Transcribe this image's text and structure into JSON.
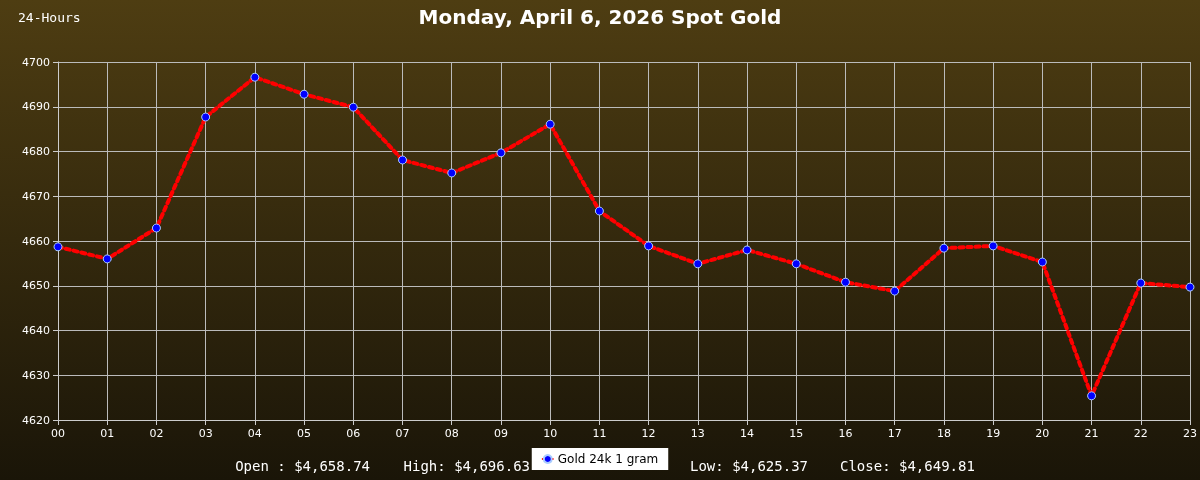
{
  "chart_data": {
    "type": "line",
    "title": "Monday, April 6, 2026 Spot Gold",
    "subtitle": "24-Hours",
    "categories": [
      "00",
      "01",
      "02",
      "03",
      "04",
      "05",
      "06",
      "07",
      "08",
      "09",
      "10",
      "11",
      "12",
      "13",
      "14",
      "15",
      "16",
      "17",
      "18",
      "19",
      "20",
      "21",
      "22",
      "23"
    ],
    "series": [
      {
        "name": "Gold 24k 1 gram",
        "color": "#ff0000",
        "values": [
          4658.7,
          4656.0,
          4662.9,
          4687.7,
          4696.6,
          4692.8,
          4689.9,
          4678.1,
          4675.2,
          4679.7,
          4686.1,
          4666.7,
          4658.9,
          4654.9,
          4658.0,
          4654.9,
          4650.8,
          4648.8,
          4658.4,
          4658.9,
          4655.3,
          4625.4,
          4650.6,
          4649.7
        ]
      }
    ],
    "ylim": [
      4620,
      4700
    ],
    "yticks": [
      4620,
      4630,
      4640,
      4650,
      4660,
      4670,
      4680,
      4690,
      4700
    ],
    "grid": true,
    "legend": "bottom",
    "marker": "circle",
    "line_style": "dotted",
    "annotations": [
      "Open : $4,658.74",
      "High: $4,696.63",
      "Low: $4,625.37",
      "Close: $4,649.81"
    ]
  }
}
